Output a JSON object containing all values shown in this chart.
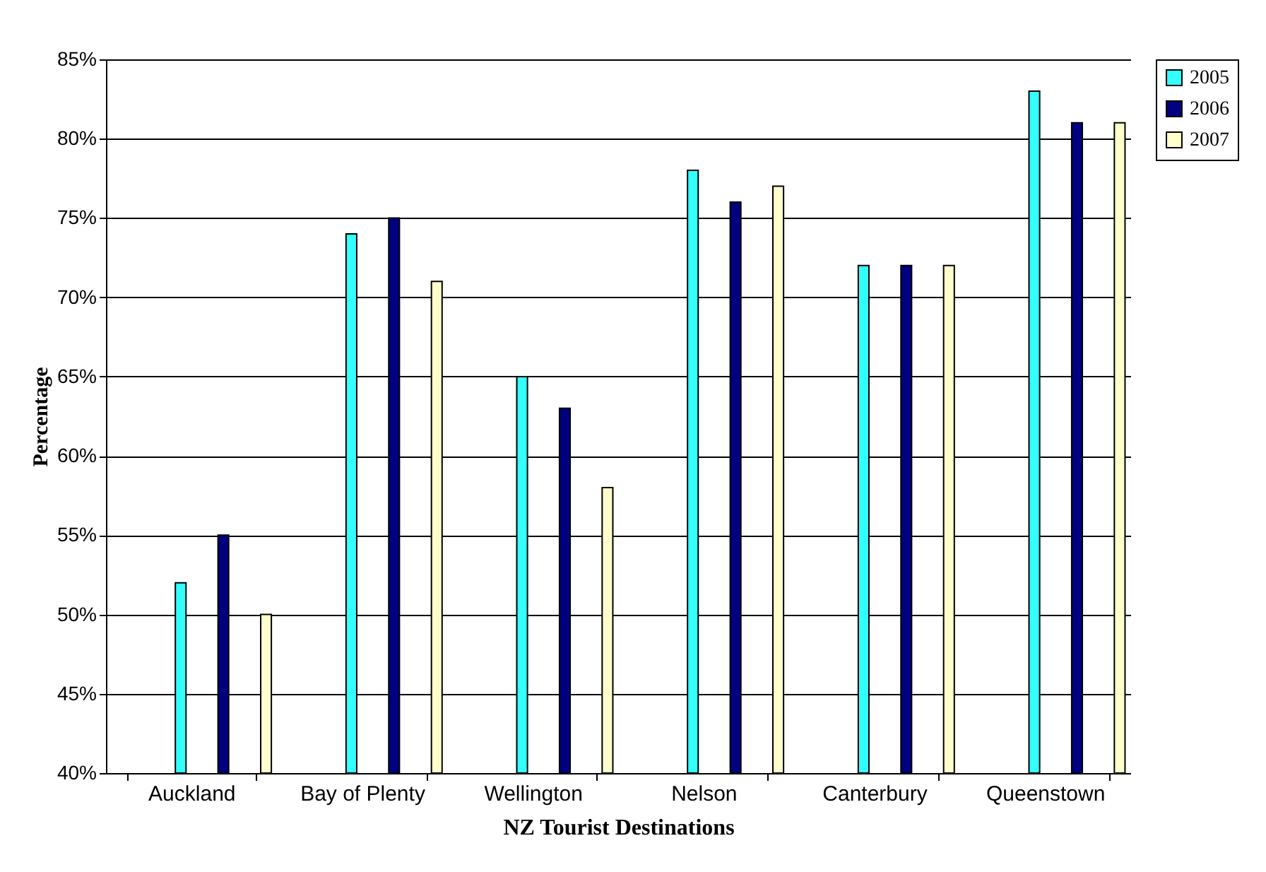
{
  "chart_data": {
    "type": "bar",
    "xlabel": "NZ Tourist Destinations",
    "ylabel": "Percentage",
    "categories": [
      "Auckland",
      "Bay of Plenty",
      "Wellington",
      "Nelson",
      "Canterbury",
      "Queenstown"
    ],
    "series": [
      {
        "name": "2005",
        "color": "#33ffff",
        "values": [
          52,
          74,
          65,
          78,
          72,
          83
        ]
      },
      {
        "name": "2006",
        "color": "#000080",
        "values": [
          55,
          75,
          63,
          76,
          72,
          81
        ]
      },
      {
        "name": "2007",
        "color": "#ffffcc",
        "values": [
          50,
          71,
          58,
          77,
          72,
          81
        ]
      }
    ],
    "ylim": [
      40,
      85
    ],
    "yticks": [
      {
        "value": 40,
        "label": "40%"
      },
      {
        "value": 45,
        "label": "45%"
      },
      {
        "value": 50,
        "label": "50%"
      },
      {
        "value": 55,
        "label": "55%"
      },
      {
        "value": 60,
        "label": "60%"
      },
      {
        "value": 65,
        "label": "65%"
      },
      {
        "value": 70,
        "label": "70%"
      },
      {
        "value": 75,
        "label": "75%"
      },
      {
        "value": 80,
        "label": "80%"
      },
      {
        "value": 85,
        "label": "85%"
      }
    ],
    "grid": "y",
    "legend": "right"
  }
}
